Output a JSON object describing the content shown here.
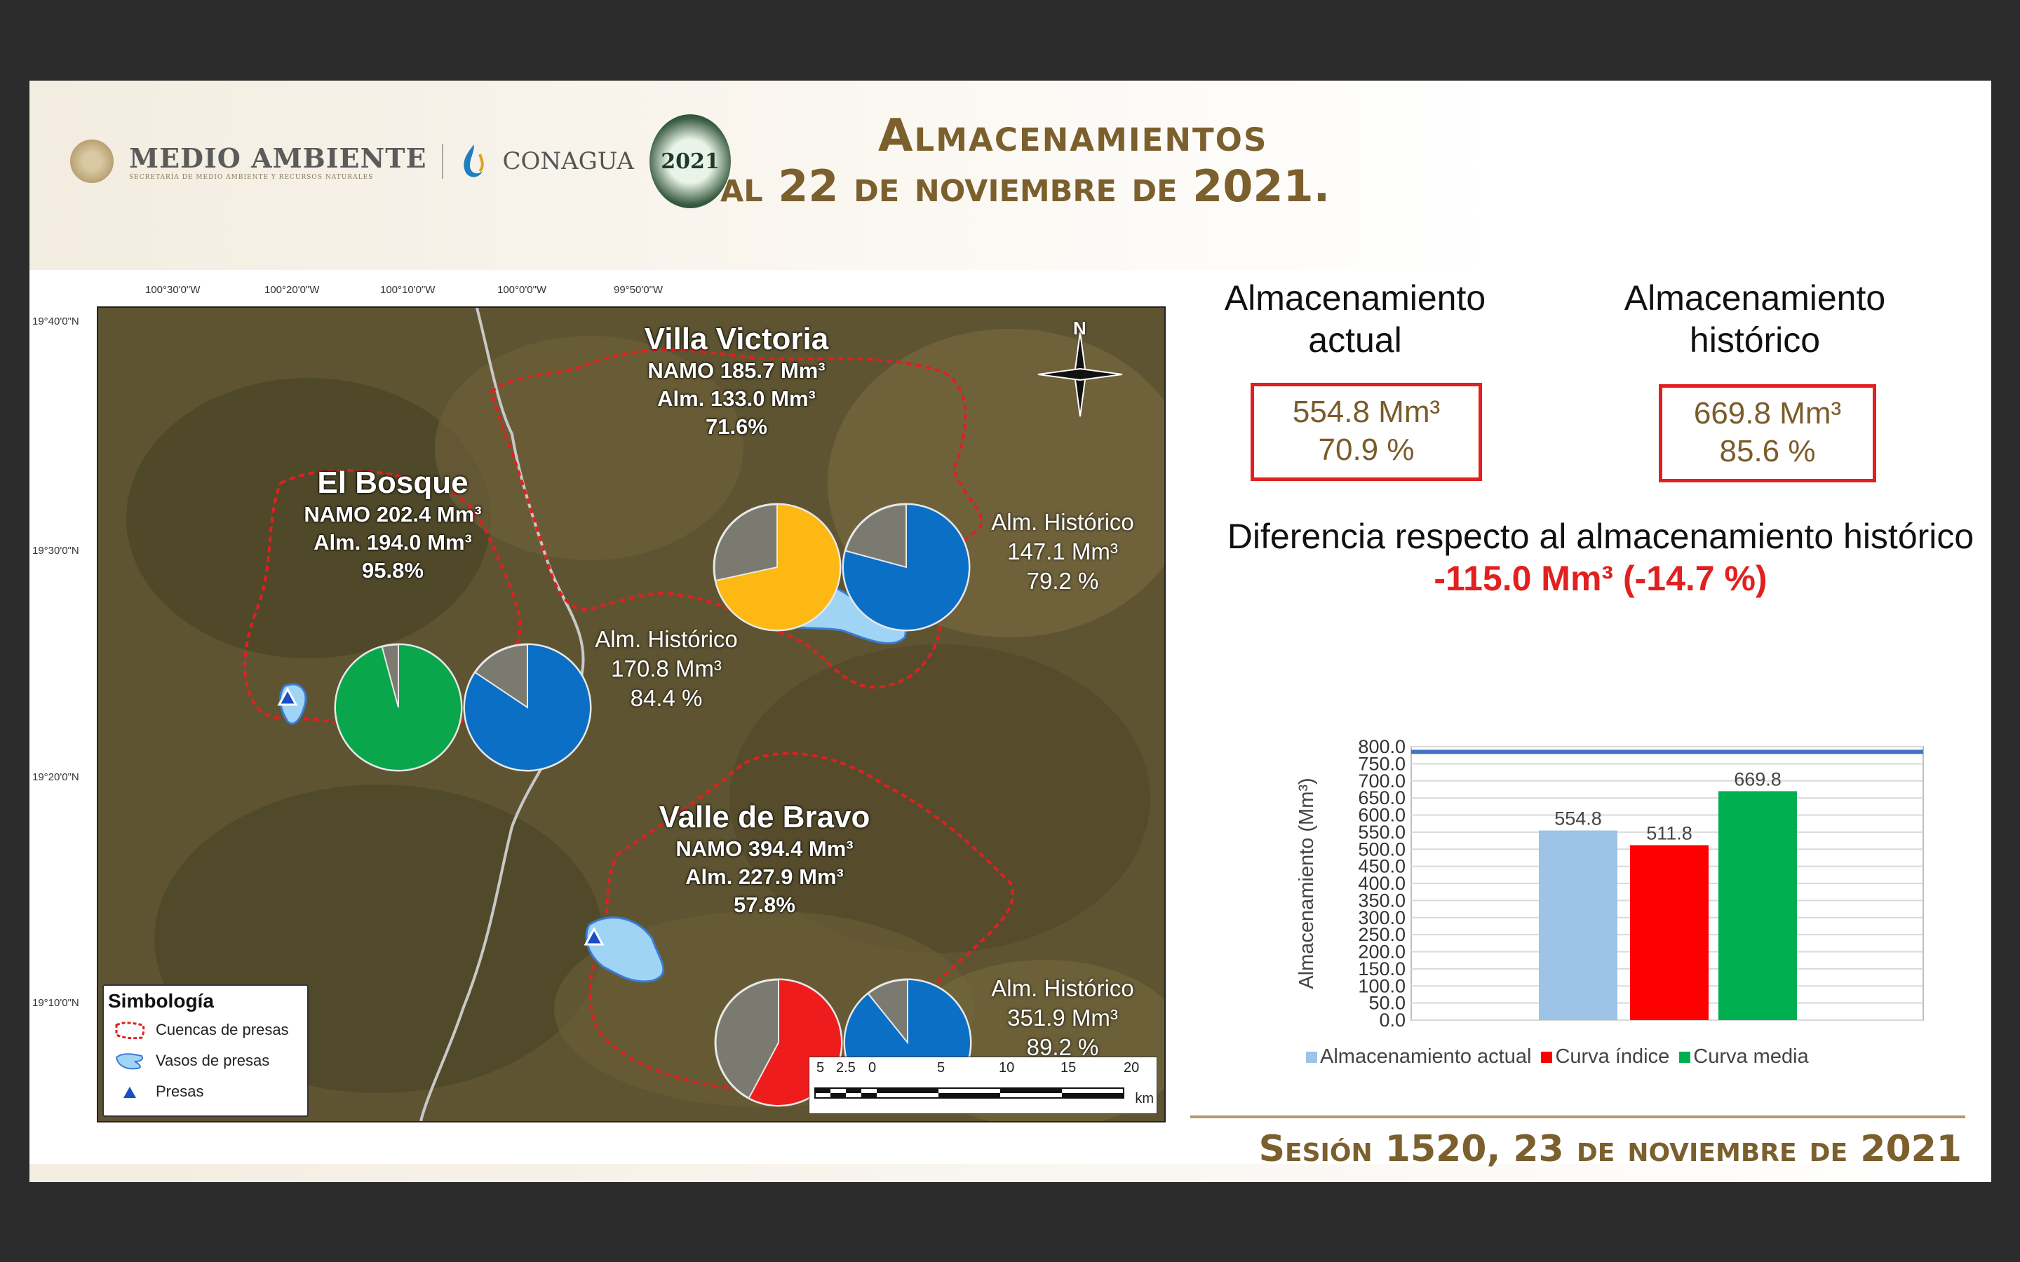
{
  "header": {
    "brand1": "MEDIO AMBIENTE",
    "brand1_sub": "SECRETARÍA DE MEDIO AMBIENTE Y RECURSOS NATURALES",
    "brand2": "CONAGUA",
    "emblem_year": "2021",
    "title_line1": "Almacenamientos",
    "title_line2": "al  22  de noviembre de 2021."
  },
  "map": {
    "lon_ticks": [
      "100°30'0\"W",
      "100°20'0\"W",
      "100°10'0\"W",
      "100°0'0\"W",
      "99°50'0\"W"
    ],
    "lat_ticks": [
      "19°40'0\"N",
      "19°30'0\"N",
      "19°20'0\"N",
      "19°10'0\"N"
    ],
    "north": "N",
    "dams": [
      {
        "name": "Villa Victoria",
        "namo": "NAMO 185.7 Mm³",
        "alm": "Alm. 133.0 Mm³",
        "pct": "71.6%",
        "pct_value": 71.6,
        "hist_title": "Alm. Histórico",
        "hist_value": "147.1 Mm³",
        "hist_pct": "79.2 %",
        "hist_pct_value": 79.2,
        "color": "#fdb813"
      },
      {
        "name": "El Bosque",
        "namo": "NAMO 202.4 Mm³",
        "alm": "Alm. 194.0 Mm³",
        "pct": "95.8%",
        "pct_value": 95.8,
        "hist_title": "Alm. Histórico",
        "hist_value": "170.8 Mm³",
        "hist_pct": "84.4 %",
        "hist_pct_value": 84.4,
        "color": "#0aa64b"
      },
      {
        "name": "Valle de Bravo",
        "namo": "NAMO 394.4 Mm³",
        "alm": "Alm. 227.9 Mm³",
        "pct": "57.8%",
        "pct_value": 57.8,
        "hist_title": "Alm. Histórico",
        "hist_value": "351.9 Mm³",
        "hist_pct": "89.2 %",
        "hist_pct_value": 89.2,
        "color": "#ee1c1c"
      }
    ],
    "legend": {
      "title": "Simbología",
      "items": [
        "Cuencas de presas",
        "Vasos de presas",
        "Presas"
      ]
    },
    "scale": {
      "labels": [
        "5",
        "2.5",
        "0",
        "5",
        "10",
        "15",
        "20"
      ],
      "unit": "km"
    },
    "hist_color": "#0b6fc6"
  },
  "stats": {
    "actual_title": "Almacenamiento actual",
    "actual_value": "554.8 Mm³",
    "actual_pct": "70.9 %",
    "hist_title": "Almacenamiento histórico",
    "hist_value": "669.8 Mm³",
    "hist_pct": "85.6 %",
    "diff_text": "Diferencia respecto al almacenamiento histórico",
    "diff_value": "-115.0 Mm³ (-14.7 %)"
  },
  "chart_data": {
    "type": "bar",
    "categories": [
      "Almacenamiento actual",
      "Curva índice",
      "Curva media"
    ],
    "values": [
      554.8,
      511.8,
      669.8
    ],
    "value_labels": [
      "554.8",
      "511.8",
      "669.8"
    ],
    "colors": [
      "#9dc3e6",
      "#ff0000",
      "#00b050"
    ],
    "ylabel": "Almacenamiento (Mm³)",
    "ylim": [
      0,
      800
    ],
    "yticks": [
      "0.0",
      "50.0",
      "100.0",
      "150.0",
      "200.0",
      "250.0",
      "300.0",
      "350.0",
      "400.0",
      "450.0",
      "500.0",
      "550.0",
      "600.0",
      "650.0",
      "700.0",
      "750.0",
      "800.0"
    ],
    "namo_line": 785.0,
    "namo_line_color": "#4472c4",
    "grid": true,
    "legend_position": "bottom"
  },
  "footer": {
    "text": "Sesión 1520, 23 de noviembre de 2021"
  }
}
